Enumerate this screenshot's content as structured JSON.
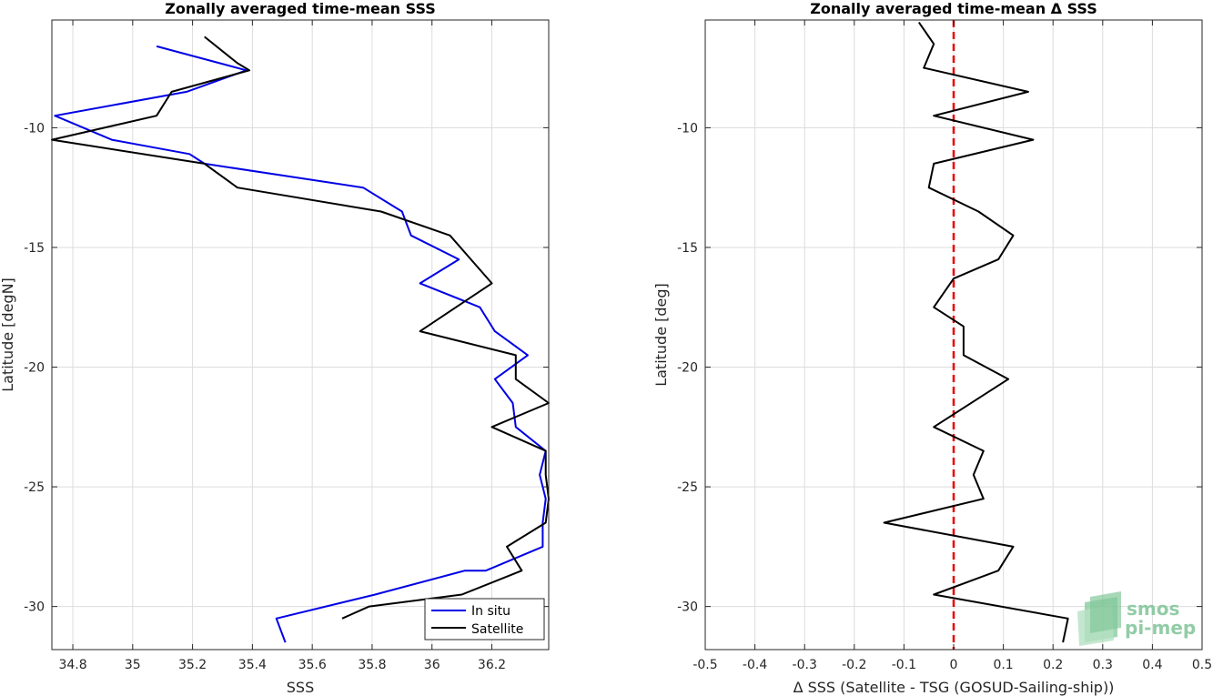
{
  "chart_data": [
    {
      "type": "line",
      "title": "Zonally averaged time-mean SSS",
      "xlabel": "SSS",
      "ylabel": "Latitude [degN]",
      "xlim": [
        34.73,
        36.39
      ],
      "ylim": [
        -31.8,
        -5.5
      ],
      "xticks": [
        34.8,
        35,
        35.2,
        35.4,
        35.6,
        35.8,
        36,
        36.2
      ],
      "xtick_labels": [
        "34.8",
        "35",
        "35.2",
        "35.4",
        "35.6",
        "35.8",
        "36",
        "36.2"
      ],
      "yticks": [
        -30,
        -25,
        -20,
        -15,
        -10
      ],
      "ytick_labels": [
        "-30",
        "-25",
        "-20",
        "-15",
        "-10"
      ],
      "grid": true,
      "legend_position": "bottom-right",
      "series": [
        {
          "name": "In situ",
          "color": "#0000e6",
          "x": [
            35.08,
            35.38,
            35.18,
            34.74,
            34.93,
            35.19,
            35.24,
            35.77,
            35.9,
            35.93,
            36.09,
            35.96,
            36.16,
            36.21,
            36.32,
            36.21,
            36.27,
            36.28,
            36.38,
            36.36,
            36.38,
            36.37,
            36.37,
            36.18,
            36.11,
            35.81,
            35.48,
            35.51
          ],
          "y": [
            -6.6,
            -7.6,
            -8.5,
            -9.5,
            -10.5,
            -11.1,
            -11.5,
            -12.5,
            -13.5,
            -14.5,
            -15.5,
            -16.5,
            -17.5,
            -18.5,
            -19.5,
            -20.5,
            -21.5,
            -22.5,
            -23.5,
            -24.5,
            -25.5,
            -26.5,
            -27.5,
            -28.5,
            -28.5,
            -29.5,
            -30.5,
            -31.5
          ]
        },
        {
          "name": "Satellite",
          "color": "#000000",
          "x": [
            35.24,
            35.35,
            35.39,
            35.13,
            35.08,
            34.73,
            35.24,
            35.35,
            35.83,
            36.06,
            36.13,
            36.2,
            35.96,
            36.28,
            36.28,
            36.39,
            36.2,
            36.38,
            36.38,
            36.39,
            36.38,
            36.25,
            36.3,
            36.1,
            35.79,
            35.7
          ],
          "y": [
            -6.2,
            -7.3,
            -7.6,
            -8.5,
            -9.5,
            -10.5,
            -11.5,
            -12.5,
            -13.5,
            -14.5,
            -15.5,
            -16.5,
            -18.5,
            -19.5,
            -20.5,
            -21.5,
            -22.5,
            -23.5,
            -24.5,
            -25.5,
            -26.5,
            -27.5,
            -28.5,
            -29.5,
            -30.0,
            -30.5
          ]
        }
      ]
    },
    {
      "type": "line",
      "title": "Zonally averaged time-mean Δ SSS",
      "xlabel": "Δ SSS (Satellite - TSG (GOSUD-Sailing-ship))",
      "ylabel": "Latitude [deg]",
      "xlim": [
        -0.5,
        0.5
      ],
      "ylim": [
        -31.8,
        -5.5
      ],
      "xticks": [
        -0.5,
        -0.4,
        -0.3,
        -0.2,
        -0.1,
        0,
        0.1,
        0.2,
        0.3,
        0.4,
        0.5
      ],
      "xtick_labels": [
        "-0.5",
        "-0.4",
        "-0.3",
        "-0.2",
        "-0.1",
        "0",
        "0.1",
        "0.2",
        "0.3",
        "0.4",
        "0.5"
      ],
      "yticks": [
        -30,
        -25,
        -20,
        -15,
        -10
      ],
      "ytick_labels": [
        "-30",
        "-25",
        "-20",
        "-15",
        "-10"
      ],
      "grid": true,
      "reference_line": {
        "x": 0,
        "color": "#e60000",
        "style": "dashed"
      },
      "series": [
        {
          "color": "#000000",
          "x": [
            -0.07,
            -0.04,
            -0.06,
            0.15,
            -0.04,
            0.16,
            -0.04,
            -0.05,
            0.05,
            0.12,
            0.09,
            0.0,
            -0.04,
            0.02,
            0.02,
            0.11,
            -0.04,
            0.06,
            0.04,
            0.06,
            -0.14,
            0.12,
            0.09,
            -0.04,
            0.23,
            0.22
          ],
          "y": [
            -5.6,
            -6.5,
            -7.5,
            -8.5,
            -9.5,
            -10.5,
            -11.5,
            -12.5,
            -13.5,
            -14.5,
            -15.5,
            -16.3,
            -17.5,
            -18.3,
            -19.5,
            -20.5,
            -22.5,
            -23.5,
            -24.5,
            -25.5,
            -26.5,
            -27.5,
            -28.5,
            -29.5,
            -30.5,
            -31.5
          ]
        }
      ]
    }
  ],
  "legend": {
    "items": [
      {
        "label": "In situ",
        "color": "#0000e6"
      },
      {
        "label": "Satellite",
        "color": "#000000"
      }
    ]
  },
  "logo": {
    "line1": "smos",
    "line2": "pi-mep"
  }
}
